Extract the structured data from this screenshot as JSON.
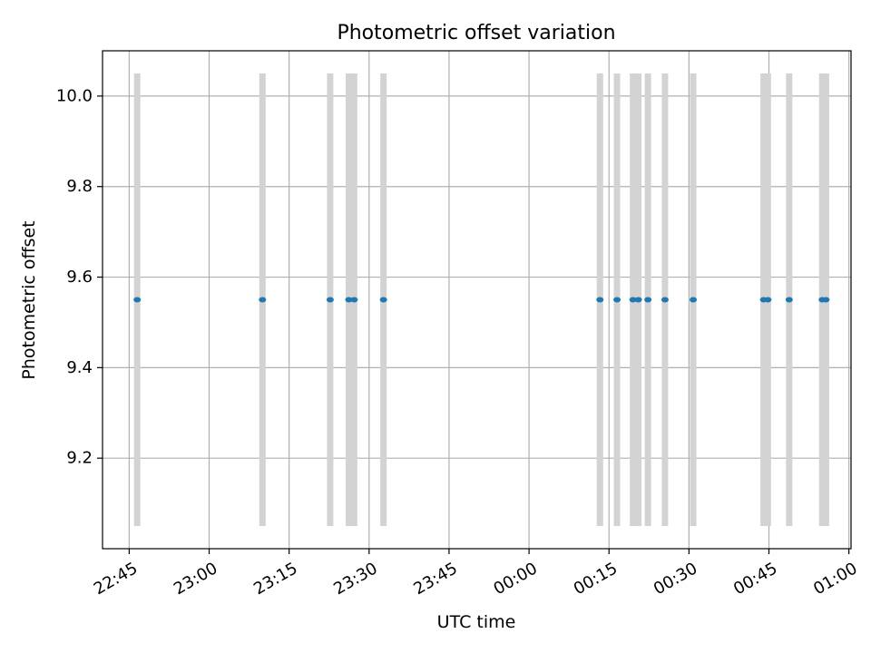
{
  "chart_data": {
    "type": "scatter",
    "title": "Photometric offset variation",
    "xlabel": "UTC time",
    "ylabel": "Photometric offset",
    "x_ticks": [
      "22:45",
      "23:00",
      "23:15",
      "23:30",
      "23:45",
      "00:00",
      "00:15",
      "00:30",
      "00:45",
      "01:00"
    ],
    "x_tick_minutes": [
      0,
      15,
      30,
      45,
      60,
      75,
      90,
      105,
      120,
      135
    ],
    "xlim_minutes": [
      -5,
      135.4
    ],
    "y_ticks": [
      9.2,
      9.4,
      9.6,
      9.8,
      10.0
    ],
    "ylim": [
      9.0,
      10.1
    ],
    "grid": true,
    "point_color": "#1f77b4",
    "band_color": "#d3d3d3",
    "band_range": [
      9.05,
      10.05
    ],
    "points": [
      {
        "time": "22:46:30",
        "minute": 1.5,
        "offset": 9.55
      },
      {
        "time": "23:10:00",
        "minute": 25.0,
        "offset": 9.55
      },
      {
        "time": "23:22:40",
        "minute": 37.7,
        "offset": 9.55
      },
      {
        "time": "23:26:10",
        "minute": 41.2,
        "offset": 9.55
      },
      {
        "time": "23:27:10",
        "minute": 42.2,
        "offset": 9.55
      },
      {
        "time": "23:32:40",
        "minute": 47.7,
        "offset": 9.55
      },
      {
        "time": "00:13:20",
        "minute": 88.3,
        "offset": 9.55
      },
      {
        "time": "00:16:30",
        "minute": 91.5,
        "offset": 9.55
      },
      {
        "time": "00:19:30",
        "minute": 94.5,
        "offset": 9.55
      },
      {
        "time": "00:20:30",
        "minute": 95.5,
        "offset": 9.55
      },
      {
        "time": "00:22:20",
        "minute": 97.3,
        "offset": 9.55
      },
      {
        "time": "00:25:30",
        "minute": 100.5,
        "offset": 9.55
      },
      {
        "time": "00:30:50",
        "minute": 105.8,
        "offset": 9.55
      },
      {
        "time": "00:44:00",
        "minute": 119.0,
        "offset": 9.55
      },
      {
        "time": "00:44:50",
        "minute": 119.8,
        "offset": 9.55
      },
      {
        "time": "00:48:50",
        "minute": 123.8,
        "offset": 9.55
      },
      {
        "time": "00:55:00",
        "minute": 130.0,
        "offset": 9.55
      },
      {
        "time": "00:55:40",
        "minute": 130.7,
        "offset": 9.55
      }
    ]
  }
}
